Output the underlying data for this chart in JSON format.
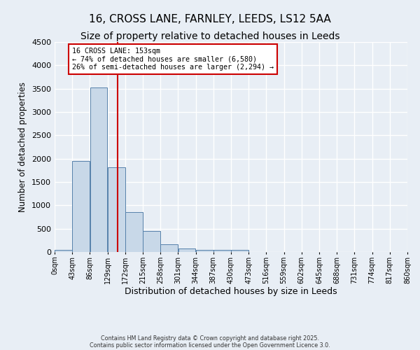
{
  "title": "16, CROSS LANE, FARNLEY, LEEDS, LS12 5AA",
  "subtitle": "Size of property relative to detached houses in Leeds",
  "xlabel": "Distribution of detached houses by size in Leeds",
  "ylabel": "Number of detached properties",
  "bar_values": [
    50,
    1950,
    3520,
    1820,
    850,
    450,
    160,
    80,
    50,
    40,
    40,
    0,
    0,
    0,
    0,
    0,
    0,
    0,
    0,
    0
  ],
  "bin_edges": [
    0,
    43,
    86,
    129,
    172,
    215,
    258,
    301,
    344,
    387,
    430,
    473,
    516,
    559,
    602,
    645,
    688,
    731,
    774,
    817,
    860
  ],
  "xtick_labels": [
    "0sqm",
    "43sqm",
    "86sqm",
    "129sqm",
    "172sqm",
    "215sqm",
    "258sqm",
    "301sqm",
    "344sqm",
    "387sqm",
    "430sqm",
    "473sqm",
    "516sqm",
    "559sqm",
    "602sqm",
    "645sqm",
    "688sqm",
    "731sqm",
    "774sqm",
    "817sqm",
    "860sqm"
  ],
  "bar_color": "#c8d8e8",
  "bar_edge_color": "#5580aa",
  "vline_x": 153,
  "vline_color": "#cc0000",
  "annotation_text": "16 CROSS LANE: 153sqm\n← 74% of detached houses are smaller (6,580)\n26% of semi-detached houses are larger (2,294) →",
  "annotation_box_color": "#ffffff",
  "annotation_box_edge": "#cc0000",
  "ylim": [
    0,
    4500
  ],
  "yticks": [
    0,
    500,
    1000,
    1500,
    2000,
    2500,
    3000,
    3500,
    4000,
    4500
  ],
  "background_color": "#e8eef5",
  "grid_color": "#ffffff",
  "title_fontsize": 11,
  "subtitle_fontsize": 10,
  "footnote_line1": "Contains HM Land Registry data © Crown copyright and database right 2025.",
  "footnote_line2": "Contains public sector information licensed under the Open Government Licence 3.0."
}
